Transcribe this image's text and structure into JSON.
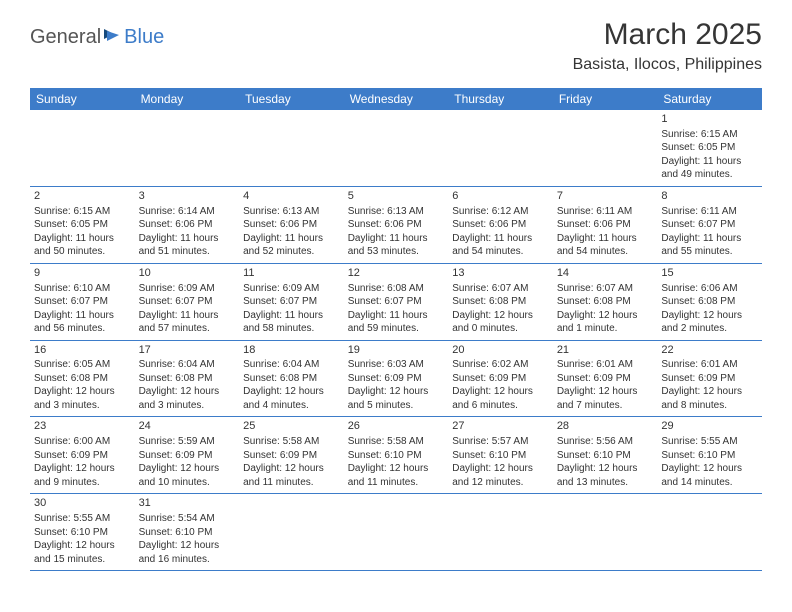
{
  "logo": {
    "part1": "General",
    "part2": "Blue"
  },
  "title": "March 2025",
  "location": "Basista, Ilocos, Philippines",
  "colors": {
    "header_bg": "#3d7cc9",
    "header_text": "#ffffff",
    "border": "#3d7cc9",
    "text": "#333333",
    "title_text": "#353535",
    "background": "#ffffff"
  },
  "fonts": {
    "title_size": 30,
    "location_size": 16,
    "dayheader_size": 12,
    "cell_size": 10
  },
  "day_headers": [
    "Sunday",
    "Monday",
    "Tuesday",
    "Wednesday",
    "Thursday",
    "Friday",
    "Saturday"
  ],
  "weeks": [
    [
      null,
      null,
      null,
      null,
      null,
      null,
      {
        "n": "1",
        "sunrise": "Sunrise: 6:15 AM",
        "sunset": "Sunset: 6:05 PM",
        "daylight": "Daylight: 11 hours and 49 minutes."
      }
    ],
    [
      {
        "n": "2",
        "sunrise": "Sunrise: 6:15 AM",
        "sunset": "Sunset: 6:05 PM",
        "daylight": "Daylight: 11 hours and 50 minutes."
      },
      {
        "n": "3",
        "sunrise": "Sunrise: 6:14 AM",
        "sunset": "Sunset: 6:06 PM",
        "daylight": "Daylight: 11 hours and 51 minutes."
      },
      {
        "n": "4",
        "sunrise": "Sunrise: 6:13 AM",
        "sunset": "Sunset: 6:06 PM",
        "daylight": "Daylight: 11 hours and 52 minutes."
      },
      {
        "n": "5",
        "sunrise": "Sunrise: 6:13 AM",
        "sunset": "Sunset: 6:06 PM",
        "daylight": "Daylight: 11 hours and 53 minutes."
      },
      {
        "n": "6",
        "sunrise": "Sunrise: 6:12 AM",
        "sunset": "Sunset: 6:06 PM",
        "daylight": "Daylight: 11 hours and 54 minutes."
      },
      {
        "n": "7",
        "sunrise": "Sunrise: 6:11 AM",
        "sunset": "Sunset: 6:06 PM",
        "daylight": "Daylight: 11 hours and 54 minutes."
      },
      {
        "n": "8",
        "sunrise": "Sunrise: 6:11 AM",
        "sunset": "Sunset: 6:07 PM",
        "daylight": "Daylight: 11 hours and 55 minutes."
      }
    ],
    [
      {
        "n": "9",
        "sunrise": "Sunrise: 6:10 AM",
        "sunset": "Sunset: 6:07 PM",
        "daylight": "Daylight: 11 hours and 56 minutes."
      },
      {
        "n": "10",
        "sunrise": "Sunrise: 6:09 AM",
        "sunset": "Sunset: 6:07 PM",
        "daylight": "Daylight: 11 hours and 57 minutes."
      },
      {
        "n": "11",
        "sunrise": "Sunrise: 6:09 AM",
        "sunset": "Sunset: 6:07 PM",
        "daylight": "Daylight: 11 hours and 58 minutes."
      },
      {
        "n": "12",
        "sunrise": "Sunrise: 6:08 AM",
        "sunset": "Sunset: 6:07 PM",
        "daylight": "Daylight: 11 hours and 59 minutes."
      },
      {
        "n": "13",
        "sunrise": "Sunrise: 6:07 AM",
        "sunset": "Sunset: 6:08 PM",
        "daylight": "Daylight: 12 hours and 0 minutes."
      },
      {
        "n": "14",
        "sunrise": "Sunrise: 6:07 AM",
        "sunset": "Sunset: 6:08 PM",
        "daylight": "Daylight: 12 hours and 1 minute."
      },
      {
        "n": "15",
        "sunrise": "Sunrise: 6:06 AM",
        "sunset": "Sunset: 6:08 PM",
        "daylight": "Daylight: 12 hours and 2 minutes."
      }
    ],
    [
      {
        "n": "16",
        "sunrise": "Sunrise: 6:05 AM",
        "sunset": "Sunset: 6:08 PM",
        "daylight": "Daylight: 12 hours and 3 minutes."
      },
      {
        "n": "17",
        "sunrise": "Sunrise: 6:04 AM",
        "sunset": "Sunset: 6:08 PM",
        "daylight": "Daylight: 12 hours and 3 minutes."
      },
      {
        "n": "18",
        "sunrise": "Sunrise: 6:04 AM",
        "sunset": "Sunset: 6:08 PM",
        "daylight": "Daylight: 12 hours and 4 minutes."
      },
      {
        "n": "19",
        "sunrise": "Sunrise: 6:03 AM",
        "sunset": "Sunset: 6:09 PM",
        "daylight": "Daylight: 12 hours and 5 minutes."
      },
      {
        "n": "20",
        "sunrise": "Sunrise: 6:02 AM",
        "sunset": "Sunset: 6:09 PM",
        "daylight": "Daylight: 12 hours and 6 minutes."
      },
      {
        "n": "21",
        "sunrise": "Sunrise: 6:01 AM",
        "sunset": "Sunset: 6:09 PM",
        "daylight": "Daylight: 12 hours and 7 minutes."
      },
      {
        "n": "22",
        "sunrise": "Sunrise: 6:01 AM",
        "sunset": "Sunset: 6:09 PM",
        "daylight": "Daylight: 12 hours and 8 minutes."
      }
    ],
    [
      {
        "n": "23",
        "sunrise": "Sunrise: 6:00 AM",
        "sunset": "Sunset: 6:09 PM",
        "daylight": "Daylight: 12 hours and 9 minutes."
      },
      {
        "n": "24",
        "sunrise": "Sunrise: 5:59 AM",
        "sunset": "Sunset: 6:09 PM",
        "daylight": "Daylight: 12 hours and 10 minutes."
      },
      {
        "n": "25",
        "sunrise": "Sunrise: 5:58 AM",
        "sunset": "Sunset: 6:09 PM",
        "daylight": "Daylight: 12 hours and 11 minutes."
      },
      {
        "n": "26",
        "sunrise": "Sunrise: 5:58 AM",
        "sunset": "Sunset: 6:10 PM",
        "daylight": "Daylight: 12 hours and 11 minutes."
      },
      {
        "n": "27",
        "sunrise": "Sunrise: 5:57 AM",
        "sunset": "Sunset: 6:10 PM",
        "daylight": "Daylight: 12 hours and 12 minutes."
      },
      {
        "n": "28",
        "sunrise": "Sunrise: 5:56 AM",
        "sunset": "Sunset: 6:10 PM",
        "daylight": "Daylight: 12 hours and 13 minutes."
      },
      {
        "n": "29",
        "sunrise": "Sunrise: 5:55 AM",
        "sunset": "Sunset: 6:10 PM",
        "daylight": "Daylight: 12 hours and 14 minutes."
      }
    ],
    [
      {
        "n": "30",
        "sunrise": "Sunrise: 5:55 AM",
        "sunset": "Sunset: 6:10 PM",
        "daylight": "Daylight: 12 hours and 15 minutes."
      },
      {
        "n": "31",
        "sunrise": "Sunrise: 5:54 AM",
        "sunset": "Sunset: 6:10 PM",
        "daylight": "Daylight: 12 hours and 16 minutes."
      },
      null,
      null,
      null,
      null,
      null
    ]
  ]
}
